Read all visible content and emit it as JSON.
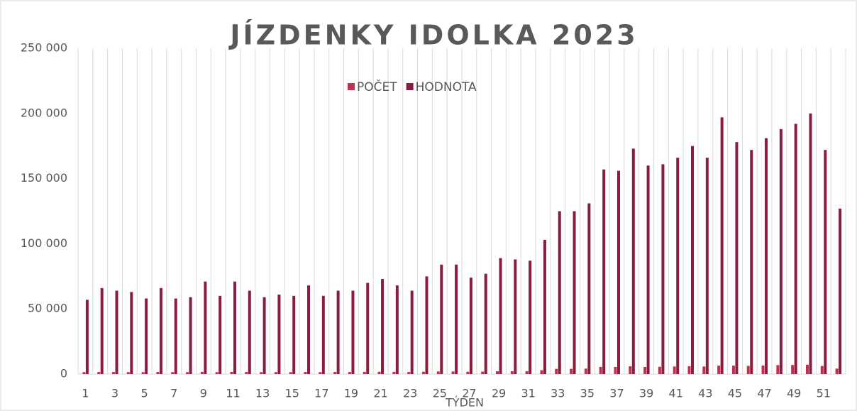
{
  "chart_data": {
    "type": "bar",
    "title": "JÍZDENKY IDOLKA 2023",
    "x_label": "TÝDEN",
    "categories": [
      "1",
      null,
      "3",
      null,
      "5",
      null,
      "7",
      null,
      "9",
      null,
      "11",
      null,
      "13",
      null,
      "15",
      null,
      "17",
      null,
      "19",
      null,
      "21",
      null,
      "23",
      null,
      "25",
      null,
      "27",
      null,
      "29",
      null,
      "31",
      null,
      "33",
      null,
      "35",
      null,
      "37",
      null,
      "39",
      null,
      "41",
      null,
      "43",
      null,
      "45",
      null,
      "47",
      null,
      "49",
      null,
      "51",
      null
    ],
    "series": [
      {
        "name": "POČET",
        "color": "#c0314f",
        "values": [
          1500,
          1600,
          1600,
          1500,
          1500,
          1600,
          1500,
          1500,
          1700,
          1500,
          1700,
          1600,
          1500,
          1500,
          1500,
          1600,
          1500,
          1600,
          1600,
          1700,
          1800,
          1700,
          1600,
          1800,
          2000,
          2000,
          1800,
          1900,
          2200,
          2200,
          2200,
          3000,
          4000,
          4000,
          4200,
          5500,
          5500,
          6000,
          5500,
          5600,
          5800,
          6000,
          5800,
          6500,
          6500,
          6300,
          6600,
          6900,
          7000,
          7200,
          6200,
          4200
        ]
      },
      {
        "name": "HODNOTA",
        "color": "#8b1c3d",
        "values": [
          57000,
          66000,
          64000,
          63000,
          58000,
          66000,
          58000,
          59000,
          71000,
          60000,
          71000,
          64000,
          59000,
          61000,
          60000,
          68000,
          60000,
          64000,
          64000,
          70000,
          73000,
          68000,
          64000,
          75000,
          84000,
          84000,
          74000,
          77000,
          89000,
          88000,
          87000,
          103000,
          125000,
          125000,
          131000,
          157000,
          156000,
          173000,
          160000,
          161000,
          166000,
          175000,
          166000,
          197000,
          178000,
          172000,
          181000,
          188000,
          192000,
          200000,
          172000,
          127000
        ]
      }
    ],
    "ylim": [
      0,
      250000
    ],
    "yticks": [
      0,
      {
        "value": 50000,
        "label": "50 000"
      },
      {
        "value": 100000,
        "label": "100 000"
      },
      {
        "value": 150000,
        "label": "150 000"
      },
      {
        "value": 200000,
        "label": "200 000"
      },
      {
        "value": 250000,
        "label": "250 000"
      }
    ],
    "grid": "x"
  }
}
